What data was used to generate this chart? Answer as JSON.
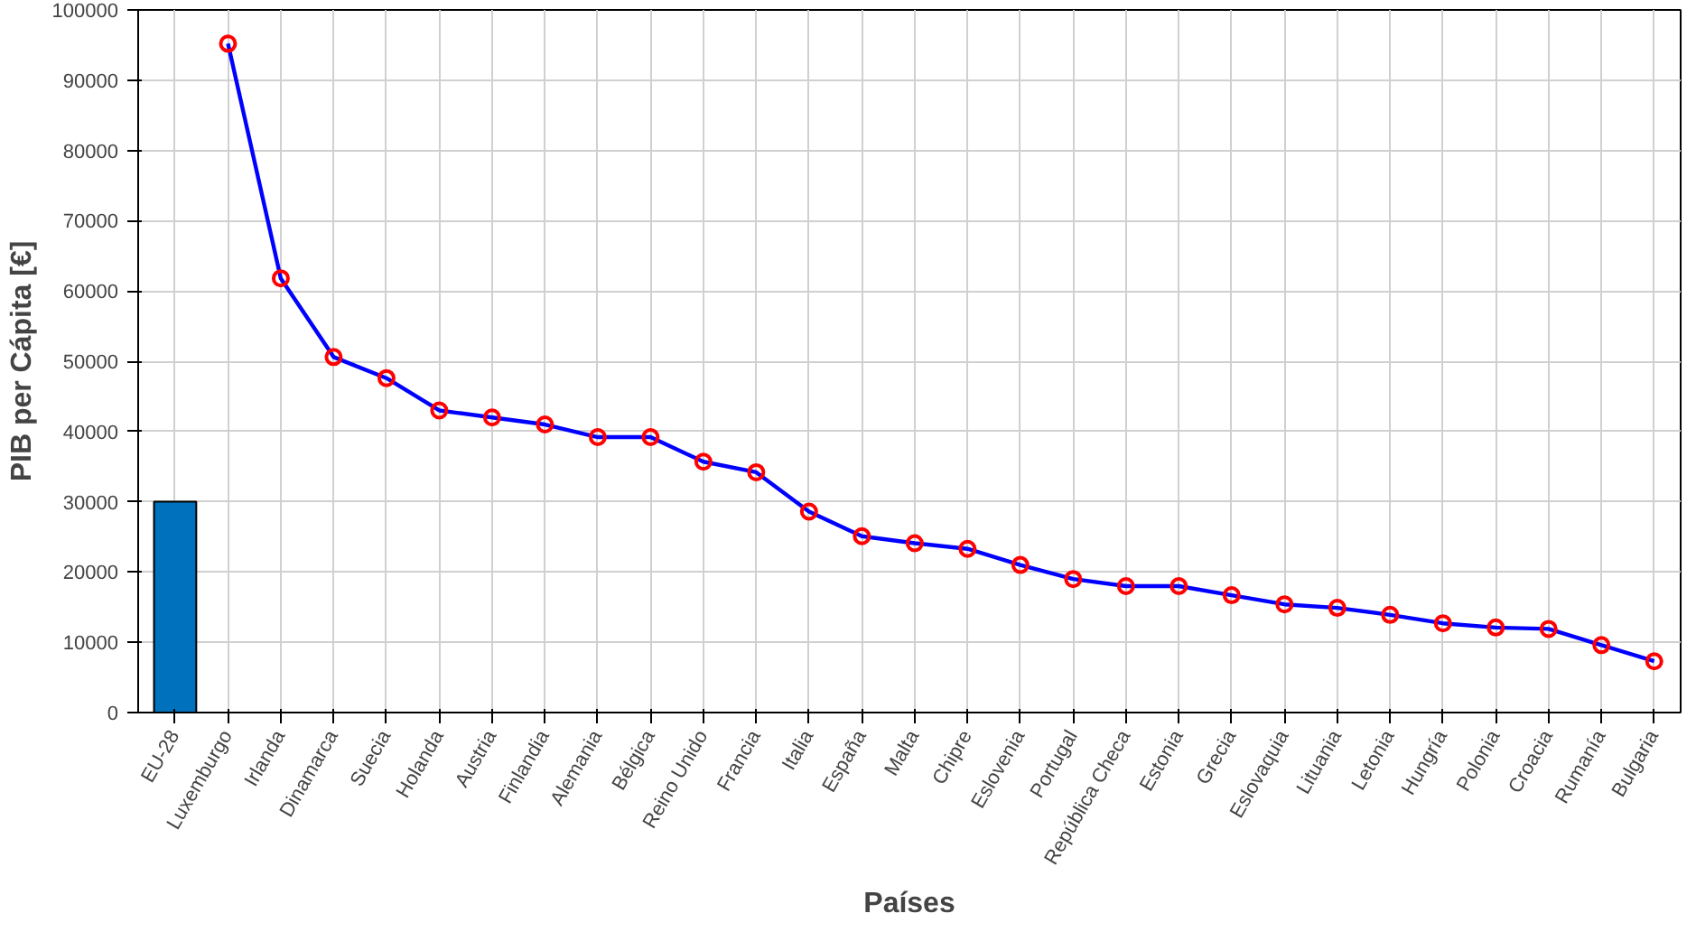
{
  "chart_data": {
    "type": "line",
    "xlabel": "Países",
    "ylabel": "PIB per Cápita [€]",
    "categories": [
      "EU-28",
      "Luxemburgo",
      "Irlanda",
      "Dinamarca",
      "Suecia",
      "Holanda",
      "Austria",
      "Finlandia",
      "Alemania",
      "Bélgica",
      "Reino Unido",
      "Francia",
      "Italia",
      "España",
      "Malta",
      "Chipre",
      "Eslovenia",
      "Portugal",
      "República Checa",
      "Estonia",
      "Grecia",
      "Eslovaquia",
      "Lituania",
      "Letonia",
      "Hungría",
      "Polonia",
      "Croacia",
      "Rumanía",
      "Bulgaria"
    ],
    "series": [
      {
        "type": "bar",
        "color": "#0072bd",
        "values": [
          30000,
          null,
          null,
          null,
          null,
          null,
          null,
          null,
          null,
          null,
          null,
          null,
          null,
          null,
          null,
          null,
          null,
          null,
          null,
          null,
          null,
          null,
          null,
          null,
          null,
          null,
          null,
          null,
          null
        ]
      },
      {
        "color": "#0000ff",
        "colors": [
          null,
          "#ff0000",
          "#ff0000",
          "#ff0000",
          "#ff0000",
          "#ff0000",
          "#ff0000",
          "#ff0000",
          "#ff0000",
          "#ff0000",
          "#ff0000",
          "#ff0000",
          "#ff0000",
          "#ff0000",
          "#ff0000",
          "#ff0000",
          "#ff0000",
          "#ff0000",
          "#ff0000",
          "#ff0000",
          "#ff0000",
          "#ff0000",
          "#ff0000",
          "#ff0000",
          "#ff0000",
          "#ff0000",
          "#ff0000",
          "#ff0000",
          "#ff0000"
        ],
        "values": [
          null,
          95200,
          61800,
          50600,
          47600,
          43000,
          42000,
          41000,
          39200,
          39200,
          35700,
          34200,
          28600,
          25100,
          24100,
          23300,
          21000,
          19000,
          18000,
          18000,
          16700,
          15400,
          14900,
          13900,
          12700,
          12100,
          11900,
          9600,
          7300
        ]
      }
    ],
    "marker": "circle",
    "line_style": "solid",
    "ylim": [
      0,
      100000
    ],
    "yticks": [
      0,
      10000,
      20000,
      30000,
      40000,
      50000,
      60000,
      70000,
      80000,
      90000,
      100000
    ],
    "grid": true
  }
}
